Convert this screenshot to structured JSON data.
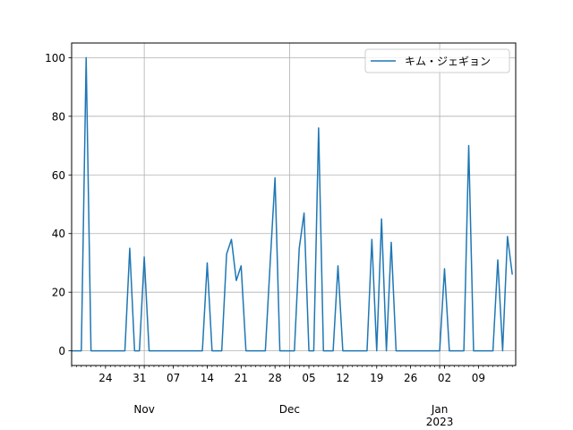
{
  "chart_data": {
    "type": "line",
    "title": "",
    "xlabel": "",
    "ylabel": "",
    "x_range": [
      "2022-10-17",
      "2023-01-14"
    ],
    "ylim": [
      -5,
      105
    ],
    "grid": true,
    "legend_position": "upper right",
    "x_ticks": [
      {
        "date": "2022-10-24",
        "label": "24"
      },
      {
        "date": "2022-10-31",
        "label": "31"
      },
      {
        "date": "2022-11-07",
        "label": "07"
      },
      {
        "date": "2022-11-14",
        "label": "14"
      },
      {
        "date": "2022-11-21",
        "label": "21"
      },
      {
        "date": "2022-11-28",
        "label": "28"
      },
      {
        "date": "2022-12-05",
        "label": "05"
      },
      {
        "date": "2022-12-12",
        "label": "12"
      },
      {
        "date": "2022-12-19",
        "label": "19"
      },
      {
        "date": "2022-12-26",
        "label": "26"
      },
      {
        "date": "2023-01-02",
        "label": "02"
      },
      {
        "date": "2023-01-09",
        "label": "09"
      }
    ],
    "x_major_labels": [
      {
        "date": "2022-11-01",
        "label": "Nov"
      },
      {
        "date": "2022-12-01",
        "label": "Dec"
      },
      {
        "date": "2023-01-01",
        "label": "Jan",
        "sublabel": "2023"
      }
    ],
    "y_ticks": [
      0,
      20,
      40,
      60,
      80,
      100
    ],
    "series": [
      {
        "name": "キム・ジェギョン",
        "color": "#1f77b4",
        "points": [
          [
            "2022-10-17",
            0
          ],
          [
            "2022-10-18",
            0
          ],
          [
            "2022-10-19",
            0
          ],
          [
            "2022-10-20",
            100
          ],
          [
            "2022-10-21",
            0
          ],
          [
            "2022-10-22",
            0
          ],
          [
            "2022-10-23",
            0
          ],
          [
            "2022-10-24",
            0
          ],
          [
            "2022-10-25",
            0
          ],
          [
            "2022-10-26",
            0
          ],
          [
            "2022-10-27",
            0
          ],
          [
            "2022-10-28",
            0
          ],
          [
            "2022-10-29",
            35
          ],
          [
            "2022-10-30",
            0
          ],
          [
            "2022-10-31",
            0
          ],
          [
            "2022-11-01",
            32
          ],
          [
            "2022-11-02",
            0
          ],
          [
            "2022-11-03",
            0
          ],
          [
            "2022-11-04",
            0
          ],
          [
            "2022-11-05",
            0
          ],
          [
            "2022-11-06",
            0
          ],
          [
            "2022-11-07",
            0
          ],
          [
            "2022-11-08",
            0
          ],
          [
            "2022-11-09",
            0
          ],
          [
            "2022-11-10",
            0
          ],
          [
            "2022-11-11",
            0
          ],
          [
            "2022-11-12",
            0
          ],
          [
            "2022-11-13",
            0
          ],
          [
            "2022-11-14",
            30
          ],
          [
            "2022-11-15",
            0
          ],
          [
            "2022-11-16",
            0
          ],
          [
            "2022-11-17",
            0
          ],
          [
            "2022-11-18",
            33
          ],
          [
            "2022-11-19",
            38
          ],
          [
            "2022-11-20",
            24
          ],
          [
            "2022-11-21",
            29
          ],
          [
            "2022-11-22",
            0
          ],
          [
            "2022-11-23",
            0
          ],
          [
            "2022-11-24",
            0
          ],
          [
            "2022-11-25",
            0
          ],
          [
            "2022-11-26",
            0
          ],
          [
            "2022-11-27",
            30
          ],
          [
            "2022-11-28",
            59
          ],
          [
            "2022-11-29",
            0
          ],
          [
            "2022-11-30",
            0
          ],
          [
            "2022-12-01",
            0
          ],
          [
            "2022-12-02",
            0
          ],
          [
            "2022-12-03",
            35
          ],
          [
            "2022-12-04",
            47
          ],
          [
            "2022-12-05",
            0
          ],
          [
            "2022-12-06",
            0
          ],
          [
            "2022-12-07",
            76
          ],
          [
            "2022-12-08",
            0
          ],
          [
            "2022-12-09",
            0
          ],
          [
            "2022-12-10",
            0
          ],
          [
            "2022-12-11",
            29
          ],
          [
            "2022-12-12",
            0
          ],
          [
            "2022-12-13",
            0
          ],
          [
            "2022-12-14",
            0
          ],
          [
            "2022-12-15",
            0
          ],
          [
            "2022-12-16",
            0
          ],
          [
            "2022-12-17",
            0
          ],
          [
            "2022-12-18",
            38
          ],
          [
            "2022-12-19",
            0
          ],
          [
            "2022-12-20",
            45
          ],
          [
            "2022-12-21",
            0
          ],
          [
            "2022-12-22",
            37
          ],
          [
            "2022-12-23",
            0
          ],
          [
            "2022-12-24",
            0
          ],
          [
            "2022-12-25",
            0
          ],
          [
            "2022-12-26",
            0
          ],
          [
            "2022-12-27",
            0
          ],
          [
            "2022-12-28",
            0
          ],
          [
            "2022-12-29",
            0
          ],
          [
            "2022-12-30",
            0
          ],
          [
            "2022-12-31",
            0
          ],
          [
            "2023-01-01",
            0
          ],
          [
            "2023-01-02",
            28
          ],
          [
            "2023-01-03",
            0
          ],
          [
            "2023-01-04",
            0
          ],
          [
            "2023-01-05",
            0
          ],
          [
            "2023-01-06",
            0
          ],
          [
            "2023-01-07",
            70
          ],
          [
            "2023-01-08",
            0
          ],
          [
            "2023-01-09",
            0
          ],
          [
            "2023-01-10",
            0
          ],
          [
            "2023-01-11",
            0
          ],
          [
            "2023-01-12",
            0
          ],
          [
            "2023-01-13",
            31
          ],
          [
            "2023-01-14",
            0
          ],
          [
            "2023-01-15",
            39
          ],
          [
            "2023-01-16",
            26
          ]
        ]
      }
    ]
  }
}
